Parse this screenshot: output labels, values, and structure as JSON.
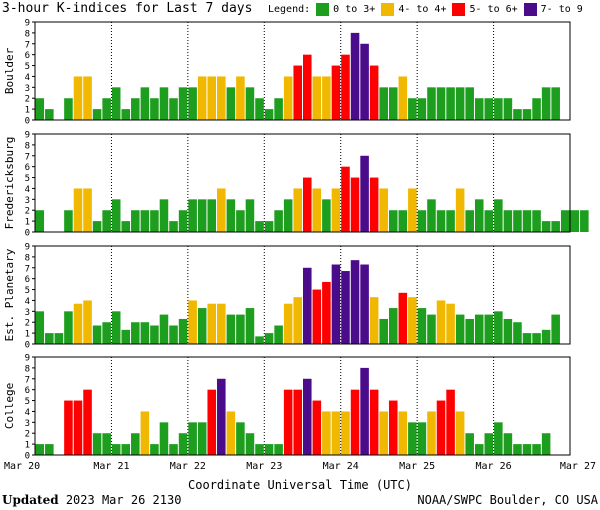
{
  "title": "3-hour K-indices for Last 7 days",
  "legend": {
    "label": "Legend:",
    "items": [
      {
        "label": "0 to 3+",
        "color": "#1e9e1e"
      },
      {
        "label": "4- to 4+",
        "color": "#f0b800"
      },
      {
        "label": "5- to 6+",
        "color": "#ff0000"
      },
      {
        "label": "7- to 9",
        "color": "#4b0c8c"
      }
    ]
  },
  "footer": {
    "updated_label": "Updated",
    "updated_value": "2023 Mar 26 2130",
    "source": "NOAA/SWPC Boulder, CO USA"
  },
  "chart_data": {
    "type": "bar",
    "xlabel": "Coordinate Universal Time (UTC)",
    "x_ticks": [
      "Mar 20",
      "Mar 21",
      "Mar 22",
      "Mar 23",
      "Mar 24",
      "Mar 25",
      "Mar 26",
      "Mar 27"
    ],
    "ylim": [
      0,
      9
    ],
    "yticks": [
      0,
      1,
      2,
      3,
      4,
      5,
      6,
      7,
      8,
      9
    ],
    "series": [
      {
        "name": "Boulder",
        "values": [
          2,
          1,
          0,
          2,
          4,
          4,
          1,
          2,
          3,
          1,
          2,
          3,
          2,
          3,
          2,
          3,
          3,
          4,
          4,
          4,
          3,
          4,
          3,
          2,
          1,
          2,
          4,
          5,
          6,
          4,
          4,
          5,
          6,
          8,
          7,
          5,
          3,
          3,
          4,
          2,
          2,
          3,
          3,
          3,
          3,
          3,
          2,
          2,
          2,
          2,
          1,
          1,
          2,
          3,
          3,
          0
        ]
      },
      {
        "name": "Fredericksburg",
        "values": [
          2,
          0,
          0,
          2,
          4,
          4,
          1,
          2,
          3,
          1,
          2,
          2,
          2,
          3,
          1,
          2,
          3,
          3,
          3,
          4,
          3,
          2,
          3,
          1,
          1,
          2,
          3,
          4,
          5,
          4,
          3,
          4,
          6,
          5,
          7,
          5,
          4,
          2,
          2,
          4,
          2,
          3,
          2,
          2,
          4,
          2,
          3,
          2,
          3,
          2,
          2,
          2,
          2,
          1,
          1,
          2,
          2,
          2,
          0
        ]
      },
      {
        "name": "Est. Planetary",
        "values": [
          3,
          1,
          1,
          3,
          3.7,
          4,
          1.7,
          2,
          3,
          1.3,
          2,
          2,
          1.7,
          2.7,
          1.7,
          2.3,
          4,
          3.3,
          3.7,
          3.7,
          2.7,
          2.7,
          3.3,
          0.7,
          1,
          1.7,
          3.7,
          4.3,
          7,
          5,
          5.7,
          7.3,
          6.7,
          7.7,
          7.3,
          4.3,
          2.3,
          3.3,
          4.7,
          4.3,
          3.3,
          2.7,
          4,
          3.7,
          2.7,
          2.3,
          2.7,
          2.7,
          3,
          2.3,
          2,
          1,
          1,
          1.3,
          2.7,
          0
        ]
      },
      {
        "name": "College",
        "values": [
          1,
          1,
          0,
          5,
          5,
          6,
          2,
          2,
          1,
          1,
          2,
          4,
          1,
          3,
          1,
          2,
          3,
          3,
          6,
          7,
          4,
          3,
          2,
          1,
          1,
          1,
          6,
          6,
          7,
          5,
          4,
          4,
          4,
          6,
          8,
          6,
          4,
          5,
          4,
          3,
          3,
          4,
          5,
          6,
          4,
          2,
          1,
          2,
          3,
          2,
          1,
          1,
          1,
          2,
          0
        ]
      }
    ]
  }
}
